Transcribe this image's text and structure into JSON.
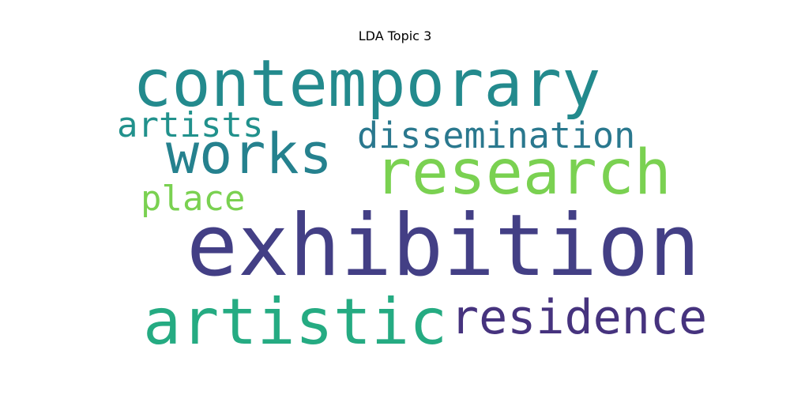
{
  "title": "LDA Topic 3",
  "words": [
    {
      "key": "exhibition",
      "text": "exhibition",
      "color": "#433f85"
    },
    {
      "key": "contemporary",
      "text": "contemporary",
      "color": "#238a8d"
    },
    {
      "key": "artistic",
      "text": "artistic",
      "color": "#25ab82"
    },
    {
      "key": "research",
      "text": "research",
      "color": "#7ad151"
    },
    {
      "key": "works",
      "text": "works",
      "color": "#25818e"
    },
    {
      "key": "residence",
      "text": "residence",
      "color": "#46337e"
    },
    {
      "key": "dissemination",
      "text": "dissemination",
      "color": "#2a788e"
    },
    {
      "key": "artists",
      "text": "artists",
      "color": "#21918c"
    },
    {
      "key": "place",
      "text": "place",
      "color": "#7ad151"
    }
  ]
}
